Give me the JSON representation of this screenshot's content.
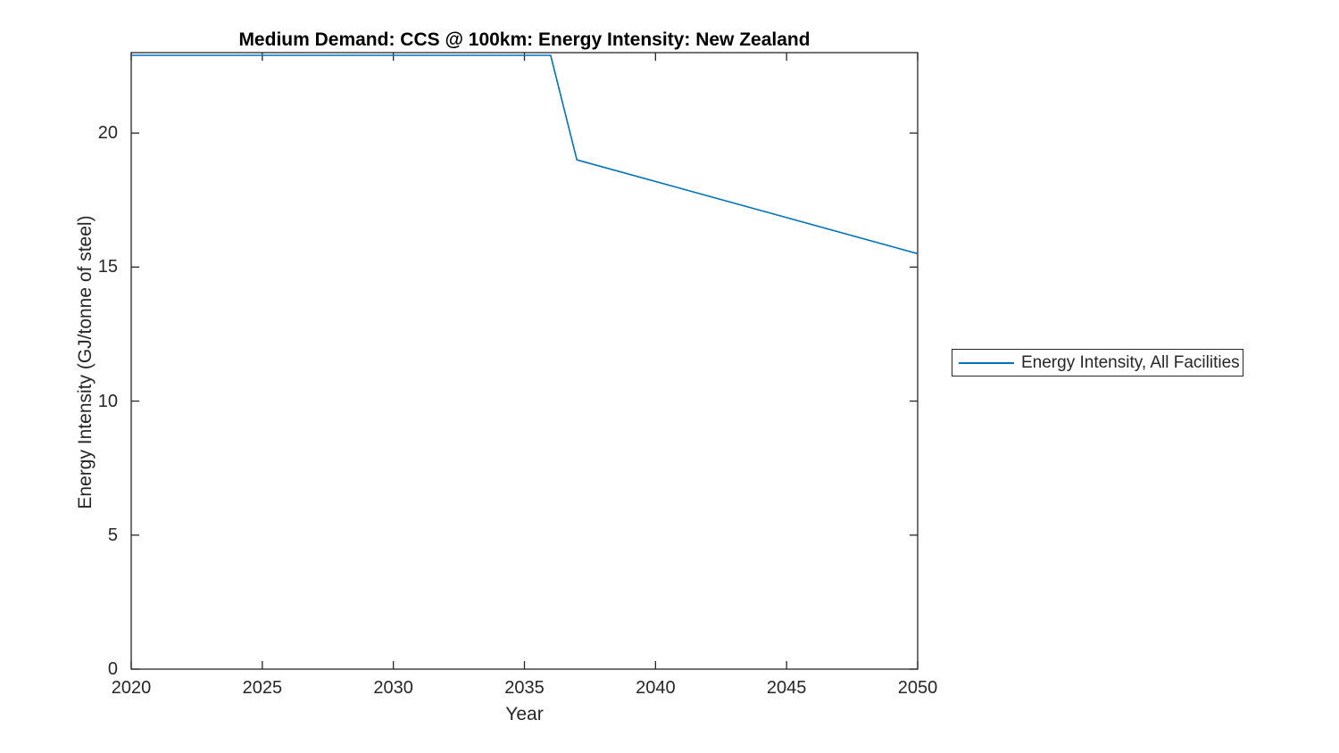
{
  "figure": {
    "title": "Medium Demand: CCS @ 100km: Energy Intensity: New Zealand"
  },
  "chart_data": {
    "type": "line",
    "title": "Medium Demand: CCS @ 100km: Energy Intensity: New Zealand",
    "xlabel": "Year",
    "ylabel": "Energy Intensity (GJ/tonne of steel)",
    "xlim": [
      2020,
      2050
    ],
    "ylim": [
      0,
      23
    ],
    "xticks": [
      2020,
      2025,
      2030,
      2035,
      2040,
      2045,
      2050
    ],
    "yticks": [
      0,
      5,
      10,
      15,
      20
    ],
    "grid": false,
    "box": true,
    "tick_direction": "in",
    "legend_position": "outside-right",
    "series": [
      {
        "name": "Energy Intensity, All Facilities",
        "color": "#0072BD",
        "x": [
          2020,
          2036,
          2037,
          2050
        ],
        "y": [
          22.9,
          22.9,
          19.0,
          15.5
        ]
      }
    ]
  },
  "legend": {
    "entries": [
      {
        "label": "Energy Intensity, All Facilities",
        "color": "#0072BD"
      }
    ]
  },
  "colors": {
    "axis": "#262626",
    "title_text": "#000000",
    "background": "#ffffff"
  }
}
